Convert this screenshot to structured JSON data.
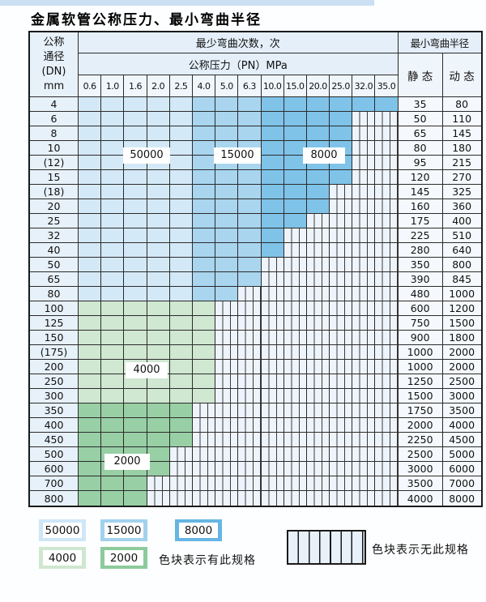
{
  "title": "金属软管公称压力、最小弯曲半径",
  "table": {
    "dn_header_lines": [
      "公称",
      "通径",
      "(DN)",
      "mm"
    ],
    "bend_count_header": "最少弯曲次数，次",
    "pressure_header": "公称压力（PN）MPa",
    "pressure_columns": [
      "0.6",
      "1.0",
      "1.6",
      "2.0",
      "2.5",
      "4.0",
      "5.0",
      "6.3",
      "10.0",
      "15.0",
      "20.0",
      "25.0",
      "32.0",
      "35.0"
    ],
    "radius_header": "最小弯曲半径",
    "static_header": "静 态",
    "dynamic_header": "动 态",
    "zone_labels": [
      {
        "value": "50000"
      },
      {
        "value": "15000"
      },
      {
        "value": "8000"
      },
      {
        "value": "4000"
      },
      {
        "value": "2000"
      }
    ],
    "rows": [
      {
        "dn": "4",
        "static": "35",
        "dynamic": "80",
        "zones": [
          [
            "50000",
            5
          ],
          [
            "15000",
            3
          ],
          [
            "8000",
            6
          ]
        ]
      },
      {
        "dn": "6",
        "static": "50",
        "dynamic": "110",
        "zones": [
          [
            "50000",
            5
          ],
          [
            "15000",
            3
          ],
          [
            "8000",
            4
          ]
        ]
      },
      {
        "dn": "8",
        "static": "65",
        "dynamic": "145",
        "zones": [
          [
            "50000",
            5
          ],
          [
            "15000",
            3
          ],
          [
            "8000",
            4
          ]
        ]
      },
      {
        "dn": "10",
        "static": "80",
        "dynamic": "180",
        "zones": [
          [
            "50000",
            5
          ],
          [
            "15000",
            3
          ],
          [
            "8000",
            4
          ]
        ]
      },
      {
        "dn": "(12)",
        "static": "95",
        "dynamic": "215",
        "zones": [
          [
            "50000",
            5
          ],
          [
            "15000",
            3
          ],
          [
            "8000",
            4
          ]
        ]
      },
      {
        "dn": "15",
        "static": "120",
        "dynamic": "270",
        "zones": [
          [
            "50000",
            5
          ],
          [
            "15000",
            3
          ],
          [
            "8000",
            4
          ]
        ]
      },
      {
        "dn": "(18)",
        "static": "145",
        "dynamic": "325",
        "zones": [
          [
            "50000",
            5
          ],
          [
            "15000",
            3
          ],
          [
            "8000",
            3
          ]
        ]
      },
      {
        "dn": "20",
        "static": "160",
        "dynamic": "360",
        "zones": [
          [
            "50000",
            5
          ],
          [
            "15000",
            3
          ],
          [
            "8000",
            3
          ]
        ]
      },
      {
        "dn": "25",
        "static": "175",
        "dynamic": "400",
        "zones": [
          [
            "50000",
            5
          ],
          [
            "15000",
            3
          ],
          [
            "8000",
            2
          ]
        ]
      },
      {
        "dn": "32",
        "static": "225",
        "dynamic": "510",
        "zones": [
          [
            "50000",
            5
          ],
          [
            "15000",
            3
          ],
          [
            "8000",
            1
          ]
        ]
      },
      {
        "dn": "40",
        "static": "280",
        "dynamic": "640",
        "zones": [
          [
            "50000",
            5
          ],
          [
            "15000",
            3
          ],
          [
            "8000",
            1
          ]
        ]
      },
      {
        "dn": "50",
        "static": "350",
        "dynamic": "800",
        "zones": [
          [
            "50000",
            5
          ],
          [
            "15000",
            3
          ]
        ]
      },
      {
        "dn": "65",
        "static": "390",
        "dynamic": "845",
        "zones": [
          [
            "50000",
            5
          ],
          [
            "15000",
            3
          ]
        ]
      },
      {
        "dn": "80",
        "static": "480",
        "dynamic": "1000",
        "zones": [
          [
            "50000",
            5
          ],
          [
            "15000",
            2
          ]
        ]
      },
      {
        "dn": "100",
        "static": "600",
        "dynamic": "1200",
        "zones": [
          [
            "4000",
            6
          ]
        ]
      },
      {
        "dn": "125",
        "static": "750",
        "dynamic": "1500",
        "zones": [
          [
            "4000",
            6
          ]
        ]
      },
      {
        "dn": "150",
        "static": "900",
        "dynamic": "1800",
        "zones": [
          [
            "4000",
            6
          ]
        ]
      },
      {
        "dn": "(175)",
        "static": "1000",
        "dynamic": "2000",
        "zones": [
          [
            "4000",
            6
          ]
        ]
      },
      {
        "dn": "200",
        "static": "1000",
        "dynamic": "2000",
        "zones": [
          [
            "4000",
            6
          ]
        ]
      },
      {
        "dn": "250",
        "static": "1250",
        "dynamic": "2500",
        "zones": [
          [
            "4000",
            6
          ]
        ]
      },
      {
        "dn": "300",
        "static": "1500",
        "dynamic": "3000",
        "zones": [
          [
            "4000",
            6
          ]
        ]
      },
      {
        "dn": "350",
        "static": "1750",
        "dynamic": "3500",
        "zones": [
          [
            "2000",
            5
          ]
        ]
      },
      {
        "dn": "400",
        "static": "2000",
        "dynamic": "4000",
        "zones": [
          [
            "2000",
            5
          ]
        ]
      },
      {
        "dn": "450",
        "static": "2250",
        "dynamic": "4500",
        "zones": [
          [
            "2000",
            5
          ]
        ]
      },
      {
        "dn": "500",
        "static": "2500",
        "dynamic": "5000",
        "zones": [
          [
            "2000",
            4
          ]
        ]
      },
      {
        "dn": "600",
        "static": "3000",
        "dynamic": "6000",
        "zones": [
          [
            "2000",
            4
          ]
        ]
      },
      {
        "dn": "700",
        "static": "3500",
        "dynamic": "7000",
        "zones": [
          [
            "2000",
            3
          ]
        ]
      },
      {
        "dn": "800",
        "static": "4000",
        "dynamic": "8000",
        "zones": [
          [
            "2000",
            3
          ]
        ]
      }
    ]
  },
  "legend": {
    "items": [
      {
        "label": "50000",
        "color": "#cfe6f6"
      },
      {
        "label": "15000",
        "color": "#a2d2ee"
      },
      {
        "label": "8000",
        "color": "#66b5e3"
      },
      {
        "label": "4000",
        "color": "#cfe7d0"
      },
      {
        "label": "2000",
        "color": "#8dca9c"
      }
    ],
    "has_spec_text": "色块表示有此规格",
    "no_spec_text": "色块表示无此规格"
  },
  "colors": {
    "zones": {
      "50000": "#d4e9f7",
      "15000": "#a9d5ef",
      "8000": "#7fc3e9",
      "4000": "#d0e7d1",
      "2000": "#98cfa5"
    },
    "hatch_background": "#eef4fb",
    "grid_line": "#2b2b2b",
    "accent_top_bar": "#cbe0f2"
  }
}
